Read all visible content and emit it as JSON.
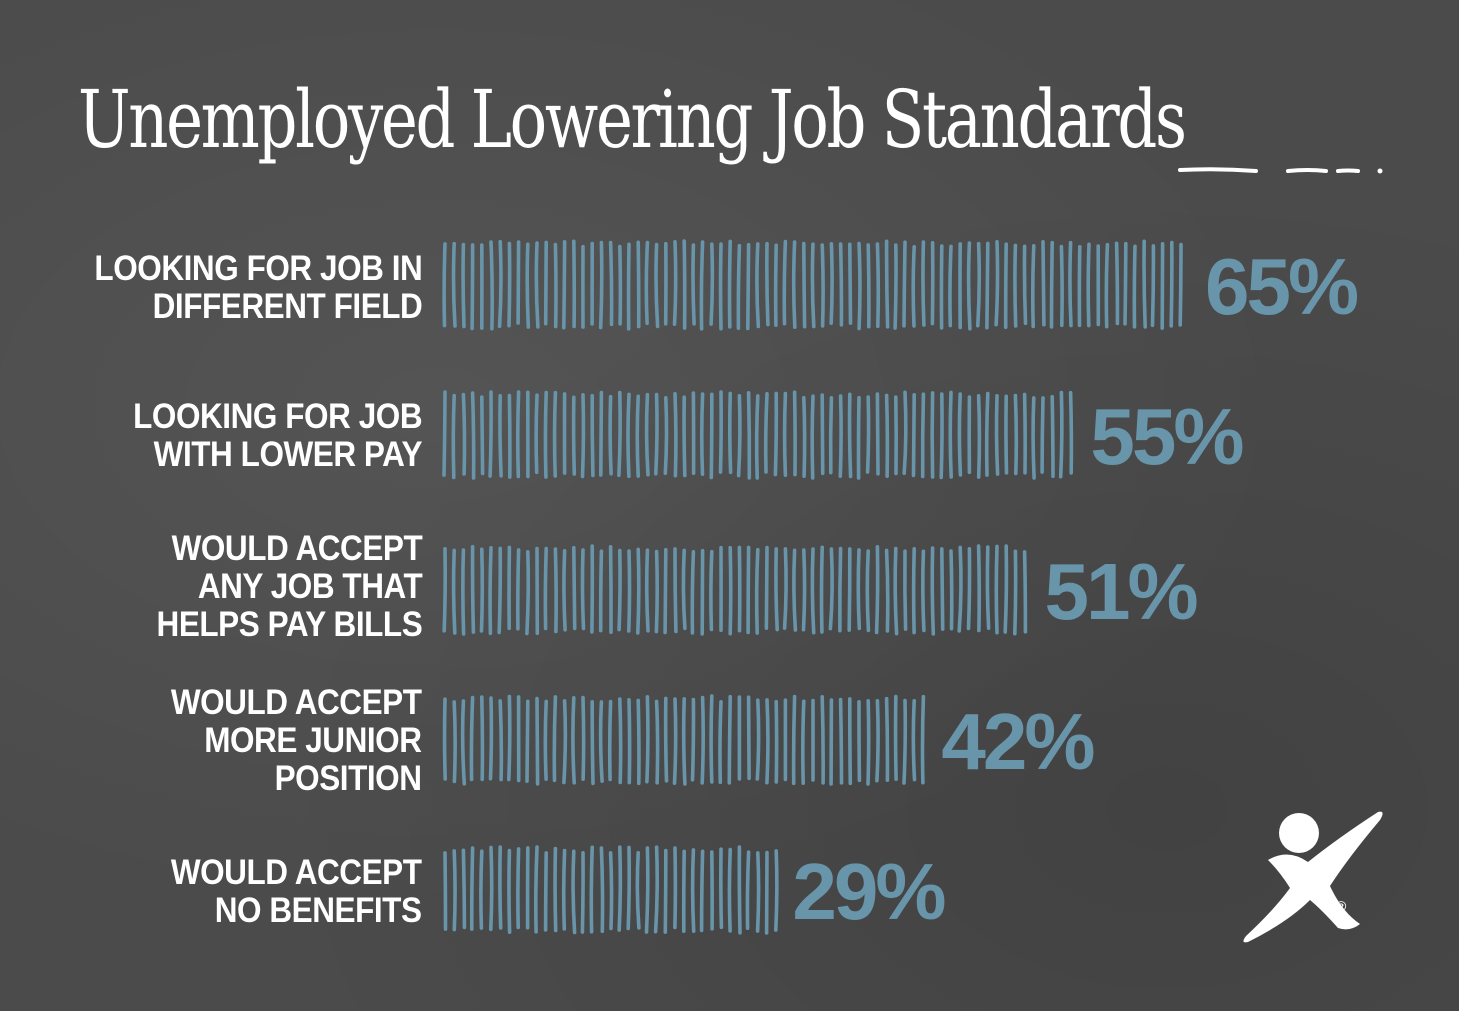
{
  "title": "Unemployed Lowering Job Standards",
  "colors": {
    "background": "#4b4b4b",
    "bar": "#6895aa",
    "text": "#ffffff"
  },
  "chart_data": {
    "type": "bar",
    "orientation": "horizontal",
    "title": "Unemployed Lowering Job Standards",
    "categories": [
      "LOOKING FOR JOB IN\nDIFFERENT FIELD",
      "LOOKING FOR JOB\nWITH LOWER PAY",
      "WOULD ACCEPT\nANY JOB THAT\nHELPS PAY BILLS",
      "WOULD ACCEPT\nMORE JUNIOR\nPOSITION",
      "WOULD ACCEPT\nNO BENEFITS"
    ],
    "values": [
      65,
      55,
      51,
      42,
      29
    ],
    "value_labels": [
      "65%",
      "55%",
      "51%",
      "42%",
      "29%"
    ],
    "unit": "%",
    "grid": false
  },
  "logo": {
    "icon": "person-x-logo-icon",
    "mark": "®"
  }
}
